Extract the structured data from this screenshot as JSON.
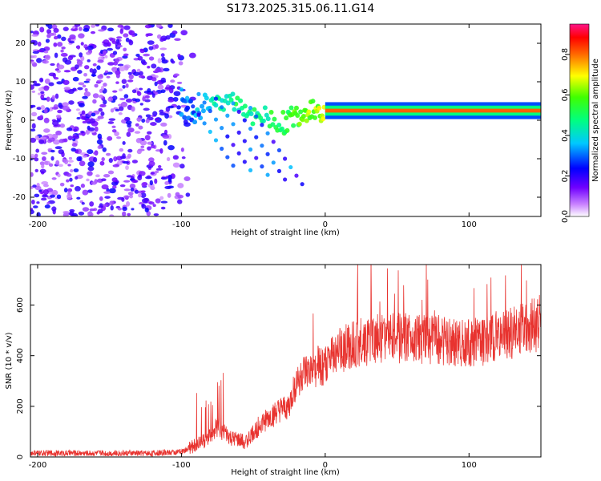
{
  "title": "S173.2025.315.06.11.G14",
  "chart_data": [
    {
      "type": "heatmap",
      "xlabel": "Height of straight line (km)",
      "ylabel": "Frequency (Hz)",
      "xlim": [
        -205,
        150
      ],
      "ylim": [
        -25,
        25
      ],
      "xticks": [
        -200,
        -100,
        0,
        100
      ],
      "xtick_labels": [
        "-200",
        "-100",
        "0",
        "100"
      ],
      "yticks": [
        -20,
        -10,
        0,
        10,
        20
      ],
      "ytick_labels": [
        "-20",
        "-10",
        "0",
        "10",
        "20"
      ],
      "colorbar": {
        "label": "Normalized spectral amplitude",
        "range": [
          0.0,
          0.95
        ],
        "ticks": [
          0.0,
          0.2,
          0.4,
          0.6,
          0.8
        ],
        "tick_labels": [
          "0.0",
          "0.2",
          "0.4",
          "0.6",
          "0.8"
        ]
      },
      "features": {
        "noise_region_x": [
          -205,
          -100
        ],
        "noise_amplitude": 0.2,
        "dominant_line": {
          "x": [
            0,
            150
          ],
          "freq": 2.5,
          "amplitude": 0.85
        },
        "transition": [
          {
            "x": -100,
            "freq": 4,
            "amp": 0.3
          },
          {
            "x": -90,
            "freq": 2,
            "amp": 0.35
          },
          {
            "x": -75,
            "freq": 6,
            "amp": 0.45
          },
          {
            "x": -60,
            "freq": 4,
            "amp": 0.5
          },
          {
            "x": -45,
            "freq": 1,
            "amp": 0.5
          },
          {
            "x": -30,
            "freq": -1,
            "amp": 0.55
          },
          {
            "x": -20,
            "freq": 1,
            "amp": 0.6
          },
          {
            "x": -10,
            "freq": 3,
            "amp": 0.65
          },
          {
            "x": 0,
            "freq": 2.5,
            "amp": 0.7
          }
        ]
      }
    },
    {
      "type": "line",
      "xlabel": "Height of straight line (km)",
      "ylabel": "SNR (10 * v/v)",
      "xlim": [
        -205,
        150
      ],
      "ylim": [
        0,
        760
      ],
      "xticks": [
        -200,
        -100,
        0,
        100
      ],
      "xtick_labels": [
        "-200",
        "-100",
        "0",
        "100"
      ],
      "yticks": [
        0,
        200,
        400,
        600
      ],
      "ytick_labels": [
        "0",
        "200",
        "400",
        "600"
      ],
      "color": "#e8332f",
      "series": [
        {
          "name": "SNR",
          "envelope_x": [
            -205,
            -120,
            -100,
            -85,
            -75,
            -65,
            -55,
            -45,
            -35,
            -25,
            -20,
            -15,
            -10,
            -5,
            0,
            10,
            20,
            30,
            50,
            70,
            90,
            110,
            130,
            150
          ],
          "envelope_y": [
            15,
            15,
            20,
            60,
            120,
            70,
            60,
            130,
            170,
            200,
            300,
            330,
            330,
            360,
            360,
            420,
            450,
            460,
            470,
            460,
            450,
            460,
            490,
            530
          ],
          "noise_amplitude": 70
        }
      ]
    }
  ]
}
